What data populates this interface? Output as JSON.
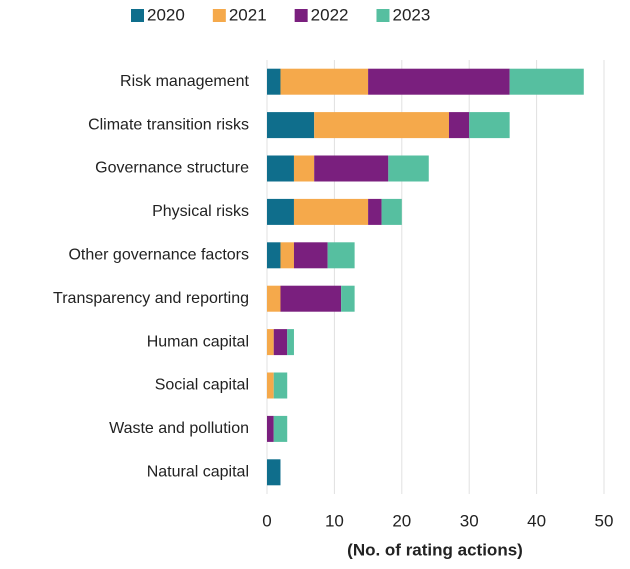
{
  "chart_data": {
    "type": "stacked_bar_horizontal",
    "categories": [
      "Risk management",
      "Climate transition risks",
      "Governance structure",
      "Physical risks",
      "Other governance factors",
      "Transparency and reporting",
      "Human capital",
      "Social capital",
      "Waste and pollution",
      "Natural capital"
    ],
    "series": [
      {
        "name": "2020",
        "color": "#0f6e8c",
        "values": [
          2,
          7,
          4,
          4,
          2,
          0,
          0,
          0,
          0,
          2
        ]
      },
      {
        "name": "2021",
        "color": "#f5a94b",
        "values": [
          13,
          20,
          3,
          11,
          2,
          2,
          1,
          1,
          0,
          0
        ]
      },
      {
        "name": "2022",
        "color": "#7a1f7e",
        "values": [
          21,
          3,
          11,
          2,
          5,
          9,
          2,
          0,
          1,
          0
        ]
      },
      {
        "name": "2023",
        "color": "#56bfa0",
        "values": [
          11,
          6,
          6,
          3,
          4,
          2,
          1,
          2,
          2,
          0
        ]
      }
    ],
    "xlabel": "(No. of rating actions)",
    "xlim": [
      0,
      50
    ],
    "xticks": [
      0,
      10,
      20,
      30,
      40,
      50
    ],
    "grid": true
  }
}
